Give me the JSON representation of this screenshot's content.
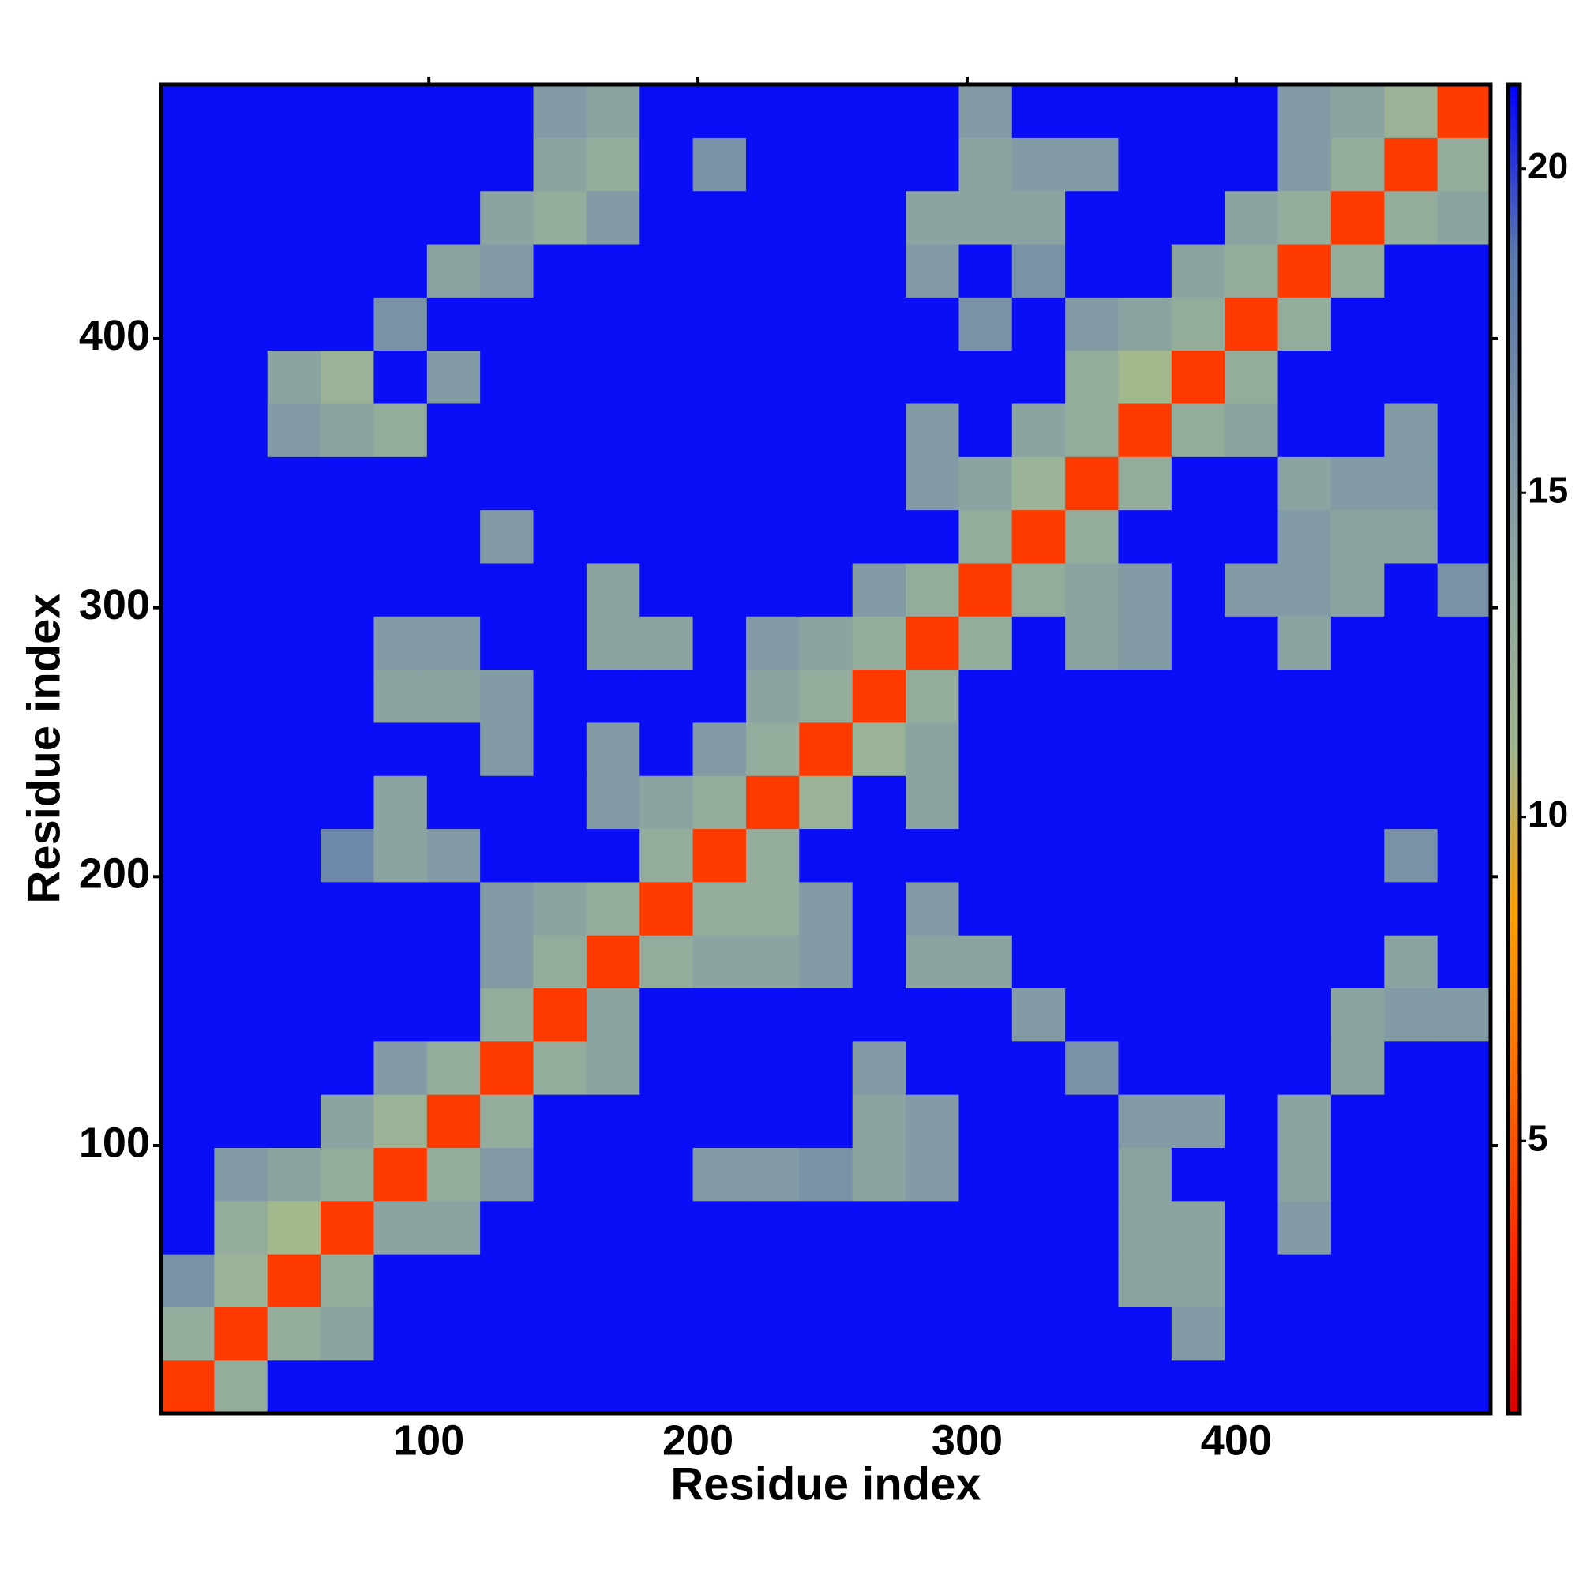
{
  "chart_data": {
    "type": "heatmap",
    "x_label": "Residue index",
    "y_label": "Residue index",
    "xlim": [
      0.5,
      494.5
    ],
    "ylim": [
      0.5,
      494.5
    ],
    "xticks": [
      100,
      200,
      300,
      400
    ],
    "yticks": [
      100,
      200,
      300,
      400
    ],
    "zlim": [
      0.8,
      21.3
    ],
    "zticks": [
      5,
      10,
      15,
      20
    ],
    "colorscale": [
      "#dd0000",
      "#ff2a00",
      "#ff6a00",
      "#ffa000",
      "#a0b890",
      "#90a8a0",
      "#7890a8",
      "#5878b0",
      "#0000ff"
    ],
    "z": [
      [
        4,
        13,
        21,
        21,
        21,
        21,
        21,
        21,
        21,
        21,
        21,
        21,
        21,
        21,
        21,
        21,
        21,
        21,
        21,
        21,
        21,
        21,
        21,
        21,
        21
      ],
      [
        13,
        4,
        13,
        14,
        21,
        21,
        21,
        21,
        21,
        21,
        21,
        21,
        21,
        21,
        21,
        21,
        21,
        21,
        21,
        15,
        21,
        21,
        21,
        21,
        21
      ],
      [
        16,
        12,
        4,
        13,
        21,
        21,
        21,
        21,
        21,
        21,
        21,
        21,
        21,
        21,
        21,
        21,
        21,
        21,
        14,
        14,
        21,
        21,
        21,
        21,
        21
      ],
      [
        21,
        13,
        11,
        4,
        14,
        14,
        21,
        21,
        21,
        21,
        21,
        21,
        21,
        21,
        21,
        21,
        21,
        21,
        14,
        14,
        21,
        15,
        21,
        21,
        21
      ],
      [
        21,
        15,
        14,
        13,
        4,
        13,
        15,
        21,
        21,
        21,
        15,
        15,
        16,
        14,
        15,
        21,
        21,
        21,
        14,
        21,
        21,
        14,
        21,
        21,
        21
      ],
      [
        21,
        21,
        21,
        14,
        12,
        4,
        13,
        21,
        21,
        21,
        21,
        21,
        21,
        14,
        15,
        21,
        21,
        21,
        15,
        15,
        21,
        14,
        21,
        21,
        21
      ],
      [
        21,
        21,
        21,
        21,
        15,
        13,
        4,
        13,
        14,
        21,
        21,
        21,
        21,
        15,
        21,
        21,
        21,
        16,
        21,
        21,
        21,
        21,
        14,
        21,
        21
      ],
      [
        21,
        21,
        21,
        21,
        21,
        21,
        13,
        4,
        14,
        21,
        21,
        21,
        21,
        21,
        21,
        21,
        15,
        21,
        21,
        21,
        21,
        21,
        14,
        15,
        15
      ],
      [
        21,
        21,
        21,
        21,
        21,
        21,
        15,
        13,
        4,
        13,
        14,
        14,
        15,
        21,
        14,
        14,
        21,
        21,
        21,
        21,
        21,
        21,
        21,
        14,
        21
      ],
      [
        21,
        21,
        21,
        21,
        21,
        21,
        15,
        14,
        13,
        4,
        13,
        13,
        15,
        21,
        15,
        21,
        21,
        21,
        21,
        21,
        21,
        21,
        21,
        21,
        21
      ],
      [
        21,
        21,
        21,
        17,
        14,
        15,
        21,
        21,
        21,
        13,
        4,
        13,
        21,
        21,
        21,
        21,
        21,
        21,
        21,
        21,
        21,
        21,
        21,
        16,
        21
      ],
      [
        21,
        21,
        21,
        21,
        14,
        21,
        21,
        21,
        15,
        14,
        13,
        4,
        12,
        21,
        14,
        21,
        21,
        21,
        21,
        21,
        21,
        21,
        21,
        21,
        21
      ],
      [
        21,
        21,
        21,
        21,
        21,
        21,
        15,
        21,
        15,
        21,
        15,
        13,
        4,
        12,
        14,
        21,
        21,
        21,
        21,
        21,
        21,
        21,
        21,
        21,
        21
      ],
      [
        21,
        21,
        21,
        21,
        14,
        14,
        15,
        21,
        21,
        21,
        21,
        14,
        13,
        4,
        13,
        21,
        21,
        21,
        21,
        21,
        21,
        21,
        21,
        21,
        21
      ],
      [
        21,
        21,
        21,
        21,
        15,
        15,
        21,
        21,
        14,
        14,
        21,
        15,
        14,
        13,
        4,
        13,
        21,
        14,
        15,
        21,
        21,
        14,
        21,
        21,
        21
      ],
      [
        21,
        21,
        21,
        21,
        21,
        21,
        21,
        21,
        14,
        21,
        21,
        21,
        21,
        15,
        13,
        4,
        13,
        14,
        15,
        21,
        15,
        15,
        14,
        21,
        16
      ],
      [
        21,
        21,
        21,
        21,
        21,
        21,
        15,
        21,
        21,
        21,
        21,
        21,
        21,
        21,
        21,
        13,
        4,
        13,
        21,
        21,
        21,
        15,
        14,
        14,
        21
      ],
      [
        21,
        21,
        21,
        21,
        21,
        21,
        21,
        21,
        21,
        21,
        21,
        21,
        21,
        21,
        15,
        14,
        12,
        4,
        13,
        21,
        21,
        14,
        15,
        15,
        21
      ],
      [
        21,
        21,
        15,
        14,
        13,
        21,
        21,
        21,
        21,
        21,
        21,
        21,
        21,
        21,
        15,
        21,
        14,
        13,
        4,
        13,
        14,
        21,
        21,
        15,
        21
      ],
      [
        21,
        21,
        14,
        12,
        21,
        15,
        21,
        21,
        21,
        21,
        21,
        21,
        21,
        21,
        21,
        21,
        21,
        13,
        11,
        4,
        13,
        21,
        21,
        21,
        21
      ],
      [
        21,
        21,
        21,
        21,
        16,
        21,
        21,
        21,
        21,
        21,
        21,
        21,
        21,
        21,
        21,
        16,
        21,
        15,
        14,
        13,
        4,
        13,
        21,
        21,
        21
      ],
      [
        21,
        21,
        21,
        21,
        21,
        14,
        15,
        21,
        21,
        21,
        21,
        21,
        21,
        21,
        15,
        21,
        16,
        21,
        21,
        14,
        13,
        4,
        13,
        21,
        21
      ],
      [
        21,
        21,
        21,
        21,
        21,
        21,
        14,
        13,
        15,
        21,
        21,
        21,
        21,
        21,
        14,
        14,
        14,
        21,
        21,
        21,
        14,
        13,
        4,
        13,
        14
      ],
      [
        21,
        21,
        21,
        21,
        21,
        21,
        21,
        14,
        13,
        21,
        16,
        21,
        21,
        21,
        21,
        14,
        15,
        15,
        21,
        21,
        21,
        15,
        13,
        4,
        13
      ],
      [
        21,
        21,
        21,
        21,
        21,
        21,
        21,
        15,
        14,
        21,
        21,
        21,
        21,
        21,
        21,
        15,
        21,
        21,
        21,
        21,
        21,
        15,
        14,
        12,
        4
      ]
    ]
  }
}
